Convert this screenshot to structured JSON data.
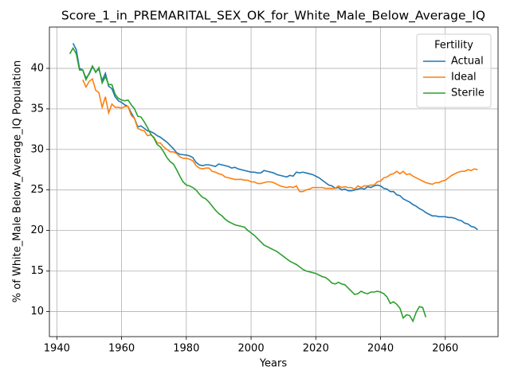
{
  "chart_data": {
    "type": "line",
    "title": "Score_1_in_PREMARITAL_SEX_OK_for_White_Male_Below_Average_IQ",
    "x_label": "Years",
    "y_label": "% of White_Male Below_Average_IQ Population",
    "legend_title": "Fertility",
    "legend_position": "upper right",
    "grid": true,
    "xlim": [
      1937.7,
      2076.3
    ],
    "ylim": [
      6.9,
      45.1
    ],
    "xticks": [
      1940,
      1960,
      1980,
      2000,
      2020,
      2040,
      2060
    ],
    "yticks": [
      10,
      15,
      20,
      25,
      30,
      35,
      40
    ],
    "x": [
      1944,
      1945,
      1946,
      1947,
      1948,
      1949,
      1950,
      1951,
      1952,
      1953,
      1954,
      1955,
      1956,
      1957,
      1958,
      1959,
      1960,
      1961,
      1962,
      1963,
      1964,
      1965,
      1966,
      1967,
      1968,
      1969,
      1970,
      1971,
      1972,
      1973,
      1974,
      1975,
      1976,
      1977,
      1978,
      1979,
      1980,
      1981,
      1982,
      1983,
      1984,
      1985,
      1986,
      1987,
      1988,
      1989,
      1990,
      1991,
      1992,
      1993,
      1994,
      1995,
      1996,
      1997,
      1998,
      1999,
      2000,
      2001,
      2002,
      2003,
      2004,
      2005,
      2006,
      2007,
      2008,
      2009,
      2010,
      2011,
      2012,
      2013,
      2014,
      2015,
      2016,
      2017,
      2018,
      2019,
      2020,
      2021,
      2022,
      2023,
      2024,
      2025,
      2026,
      2027,
      2028,
      2029,
      2030,
      2031,
      2032,
      2033,
      2034,
      2035,
      2036,
      2037,
      2038,
      2039,
      2040,
      2041,
      2042,
      2043,
      2044,
      2045,
      2046,
      2047,
      2048,
      2049,
      2050,
      2051,
      2052,
      2053,
      2054,
      2055,
      2056,
      2057,
      2058,
      2059,
      2060,
      2061,
      2062,
      2063,
      2064,
      2065,
      2066,
      2067,
      2068,
      2069,
      2070
    ],
    "series": [
      {
        "name": "Actual",
        "color": "#1f77b4",
        "values": [
          null,
          43.1,
          42.3,
          40.0,
          39.8,
          38.8,
          39.3,
          40.2,
          39.6,
          39.9,
          38.5,
          39.4,
          37.8,
          37.5,
          36.5,
          36.0,
          35.8,
          35.5,
          35.3,
          34.5,
          33.8,
          32.8,
          32.9,
          32.6,
          32.3,
          32.2,
          32.0,
          31.7,
          31.5,
          31.2,
          30.9,
          30.5,
          30.1,
          29.6,
          29.4,
          29.35,
          29.3,
          29.2,
          29.0,
          28.4,
          28.1,
          28.0,
          28.1,
          28.1,
          28.0,
          27.9,
          28.2,
          28.1,
          28.0,
          27.9,
          27.7,
          27.8,
          27.6,
          27.5,
          27.4,
          27.3,
          27.2,
          27.2,
          27.1,
          27.1,
          27.4,
          27.3,
          27.2,
          27.1,
          26.9,
          26.8,
          26.7,
          26.6,
          26.8,
          26.7,
          27.2,
          27.1,
          27.2,
          27.1,
          27.0,
          26.9,
          26.7,
          26.5,
          26.2,
          25.9,
          25.6,
          25.5,
          25.2,
          25.3,
          25.0,
          25.1,
          24.9,
          24.9,
          25.0,
          25.1,
          25.2,
          25.1,
          25.4,
          25.3,
          25.5,
          25.6,
          25.5,
          25.2,
          25.1,
          24.8,
          24.8,
          24.4,
          24.3,
          23.9,
          23.7,
          23.5,
          23.2,
          23.0,
          22.7,
          22.5,
          22.2,
          22.0,
          21.8,
          21.8,
          21.7,
          21.7,
          21.7,
          21.6,
          21.6,
          21.5,
          21.3,
          21.2,
          20.9,
          20.8,
          20.5,
          20.4,
          20.1
        ]
      },
      {
        "name": "Ideal",
        "color": "#ff7f0e",
        "values": [
          null,
          null,
          null,
          null,
          38.6,
          37.7,
          38.4,
          38.7,
          37.3,
          37.0,
          35.2,
          36.5,
          34.5,
          35.6,
          35.2,
          35.2,
          35.1,
          35.3,
          35.3,
          34.2,
          33.8,
          32.6,
          32.4,
          32.3,
          31.7,
          31.8,
          31.5,
          30.8,
          30.8,
          30.3,
          30.0,
          29.7,
          29.7,
          29.5,
          29.1,
          28.9,
          28.9,
          28.8,
          28.6,
          28.0,
          27.7,
          27.6,
          27.7,
          27.7,
          27.3,
          27.2,
          27.0,
          26.9,
          26.6,
          26.5,
          26.4,
          26.3,
          26.3,
          26.3,
          26.2,
          26.2,
          26.0,
          26.0,
          25.8,
          25.8,
          25.9,
          26.0,
          26.0,
          25.9,
          25.7,
          25.5,
          25.4,
          25.3,
          25.4,
          25.3,
          25.5,
          24.8,
          24.8,
          25.0,
          25.1,
          25.3,
          25.3,
          25.3,
          25.3,
          25.2,
          25.2,
          25.2,
          25.2,
          25.5,
          25.3,
          25.4,
          25.3,
          25.3,
          25.1,
          25.5,
          25.3,
          25.5,
          25.5,
          25.6,
          25.6,
          26.0,
          26.1,
          26.5,
          26.6,
          26.9,
          27.0,
          27.3,
          27.0,
          27.3,
          26.9,
          27.0,
          26.7,
          26.5,
          26.3,
          26.1,
          25.9,
          25.8,
          25.7,
          25.9,
          25.9,
          26.1,
          26.2,
          26.5,
          26.8,
          27.0,
          27.2,
          27.3,
          27.3,
          27.5,
          27.4,
          27.6,
          27.5
        ]
      },
      {
        "name": "Sterile",
        "color": "#2ca02c",
        "values": [
          41.8,
          42.5,
          41.8,
          39.8,
          39.8,
          38.6,
          39.4,
          40.3,
          39.5,
          40.1,
          38.2,
          39.0,
          38.0,
          38.0,
          36.8,
          36.3,
          36.1,
          36.0,
          36.1,
          35.5,
          35.0,
          34.1,
          34.0,
          33.4,
          32.7,
          31.9,
          31.4,
          30.6,
          30.3,
          29.7,
          29.0,
          28.5,
          28.2,
          27.5,
          26.7,
          26.0,
          25.6,
          25.5,
          25.3,
          25.0,
          24.5,
          24.1,
          23.9,
          23.5,
          23.0,
          22.5,
          22.1,
          21.8,
          21.4,
          21.1,
          20.9,
          20.7,
          20.6,
          20.5,
          20.4,
          20.0,
          19.7,
          19.4,
          19.0,
          18.6,
          18.2,
          18.0,
          17.8,
          17.6,
          17.4,
          17.1,
          16.8,
          16.5,
          16.2,
          16.0,
          15.8,
          15.5,
          15.2,
          15.0,
          14.9,
          14.8,
          14.7,
          14.5,
          14.3,
          14.2,
          13.9,
          13.5,
          13.4,
          13.6,
          13.4,
          13.3,
          12.9,
          12.5,
          12.1,
          12.2,
          12.5,
          12.3,
          12.2,
          12.4,
          12.4,
          12.5,
          12.4,
          12.2,
          11.8,
          11.0,
          11.2,
          10.9,
          10.4,
          9.2,
          9.6,
          9.5,
          8.8,
          9.9,
          10.6,
          10.5,
          9.3,
          null,
          null,
          null,
          null,
          null,
          null,
          null,
          null,
          null,
          null,
          null,
          null,
          null,
          null,
          null,
          null
        ]
      }
    ]
  }
}
